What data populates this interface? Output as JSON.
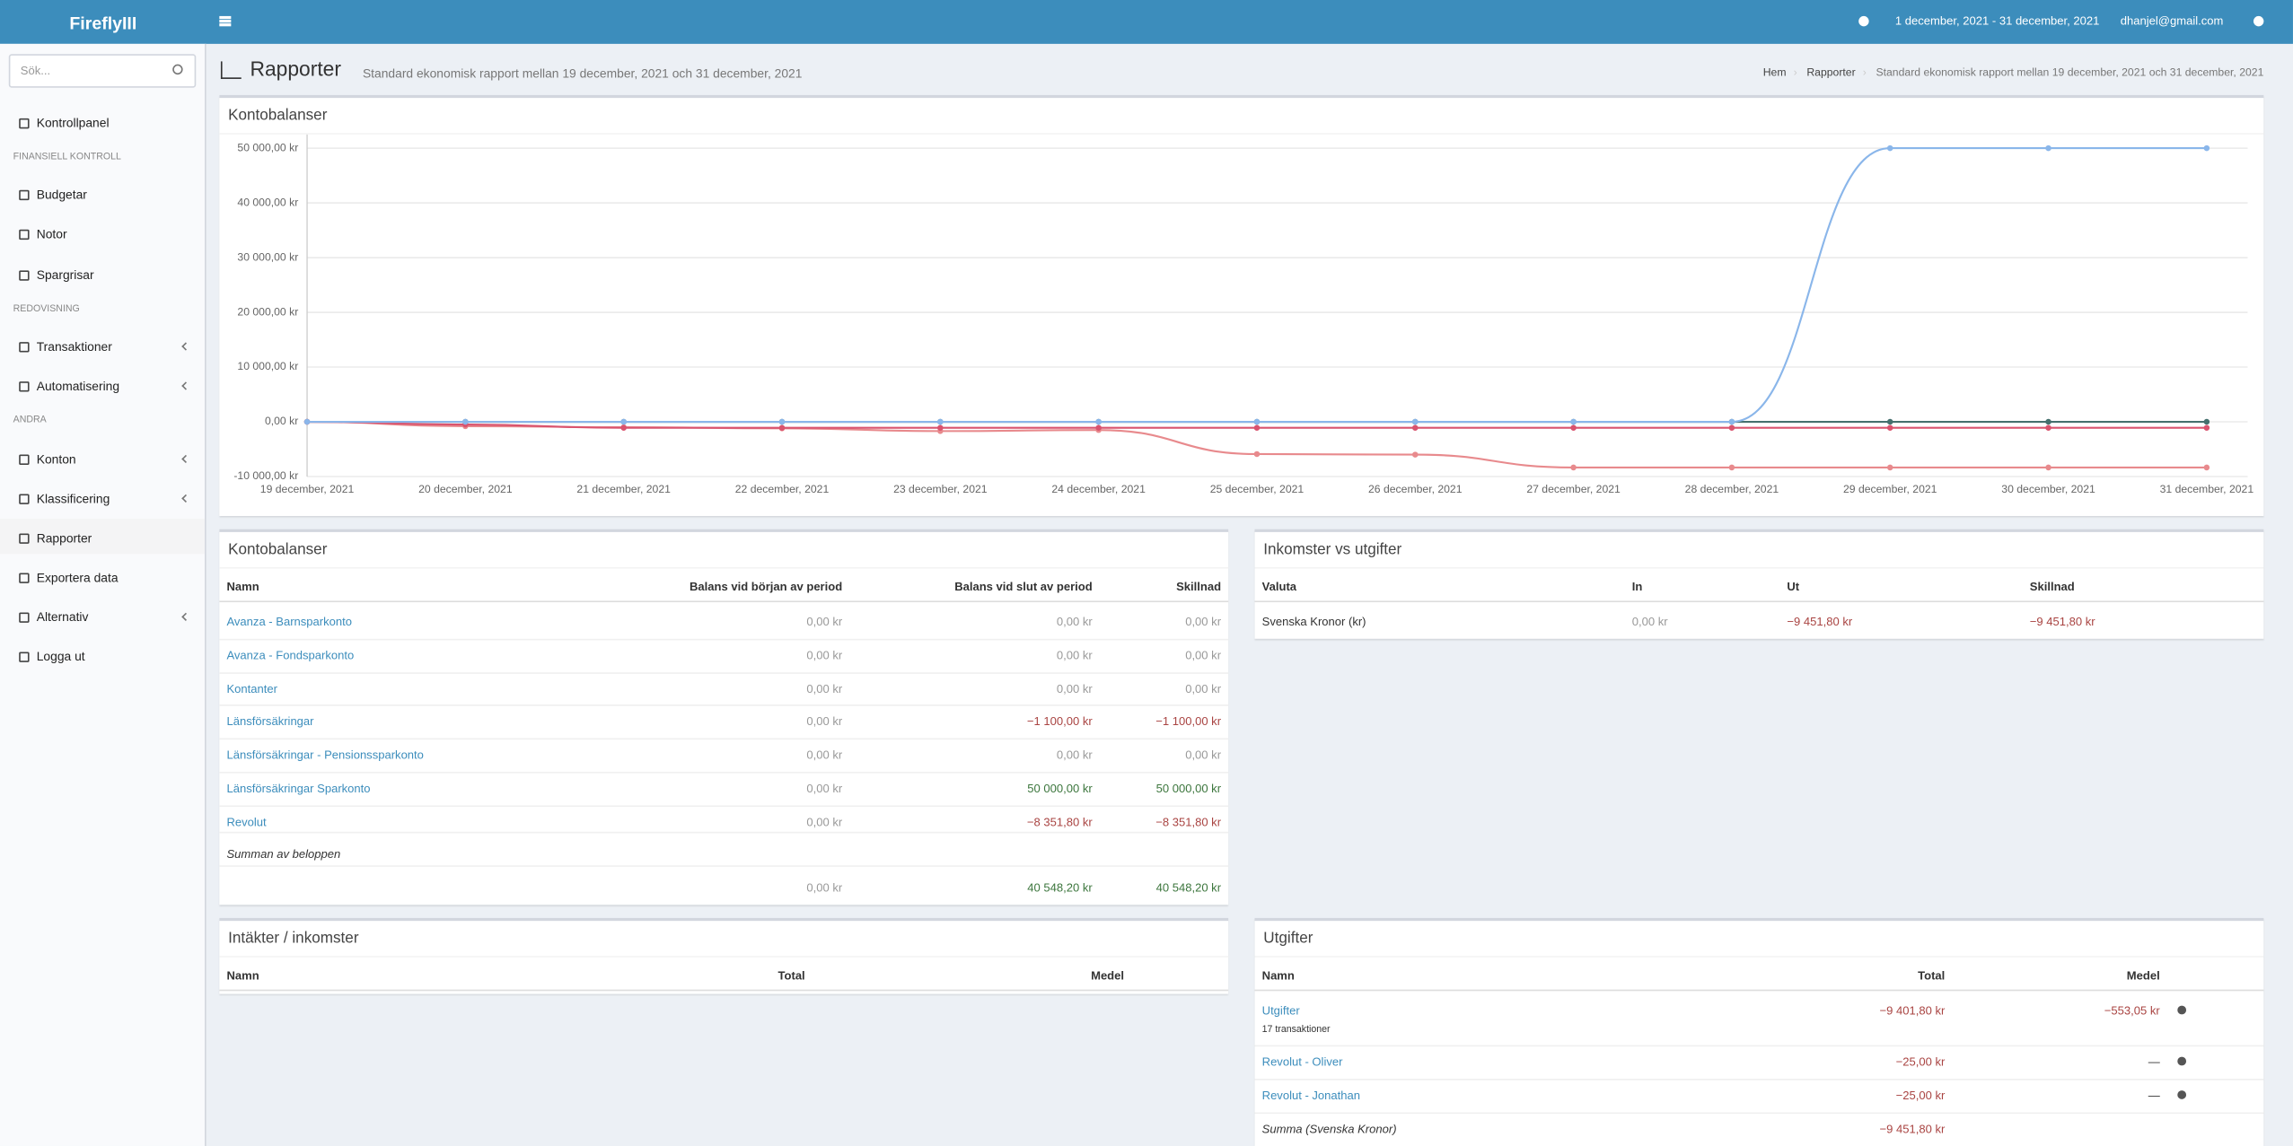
{
  "header": {
    "brand": "FireflyIII",
    "date_range": "1 december, 2021 - 31 december, 2021",
    "user": "dhanjel@gmail.com"
  },
  "sidebar": {
    "search": "Sök...",
    "menu": [
      {
        "label": "Kontrollpanel"
      },
      {
        "heading": "FINANSIELL KONTROLL"
      },
      {
        "label": "Budgetar"
      },
      {
        "label": "Notor"
      },
      {
        "label": "Spargrisar"
      },
      {
        "heading": "REDOVISNING"
      },
      {
        "label": "Transaktioner",
        "sub": true
      },
      {
        "label": "Automatisering",
        "sub": true
      },
      {
        "heading": "ANDRA"
      },
      {
        "label": "Konton",
        "sub": true
      },
      {
        "label": "Klassificering",
        "sub": true
      },
      {
        "label": "Rapporter",
        "active": true
      },
      {
        "label": "Exportera data"
      },
      {
        "label": "Alternativ",
        "sub": true
      },
      {
        "label": "Logga ut"
      }
    ]
  },
  "page": {
    "title": "Rapporter",
    "subtitle": "Standard ekonomisk rapport mellan 19 december, 2021 och 31 december, 2021",
    "breadcrumbs": [
      "Hem",
      "Rapporter",
      "Standard ekonomisk rapport mellan 19 december, 2021 och 31 december, 2021"
    ]
  },
  "chart_box": {
    "title": "Kontobalanser"
  },
  "chart_data": {
    "type": "line",
    "categories": [
      "19 december, 2021",
      "20 december, 2021",
      "21 december, 2021",
      "22 december, 2021",
      "23 december, 2021",
      "24 december, 2021",
      "25 december, 2021",
      "26 december, 2021",
      "27 december, 2021",
      "28 december, 2021",
      "29 december, 2021",
      "30 december, 2021",
      "31 december, 2021"
    ],
    "ylim": [
      -10000,
      52500
    ],
    "yticks": [
      {
        "value": -10000,
        "label": "-10 000,00 kr"
      },
      {
        "value": 0,
        "label": "0,00 kr"
      },
      {
        "value": 10000,
        "label": "10 000,00 kr"
      },
      {
        "value": 20000,
        "label": "20 000,00 kr"
      },
      {
        "value": 30000,
        "label": "30 000,00 kr"
      },
      {
        "value": 40000,
        "label": "40 000,00 kr"
      },
      {
        "value": 50000,
        "label": "50 000,00 kr"
      }
    ],
    "grid": true,
    "series": [
      {
        "color": "#45706e",
        "values": [
          0,
          0,
          0,
          0,
          0,
          0,
          0,
          0,
          0,
          0,
          0,
          0,
          0
        ]
      },
      {
        "color": "#e88a8d",
        "values": [
          0,
          -800,
          -1000,
          -1200,
          -1700,
          -1500,
          -5900,
          -6000,
          -8351.8,
          -8351.8,
          -8351.8,
          -8351.8,
          -8351.8
        ]
      },
      {
        "color": "#d9536e",
        "values": [
          0,
          -500,
          -1100,
          -1100,
          -1100,
          -1100,
          -1100,
          -1100,
          -1100,
          -1100,
          -1100,
          -1100,
          -1100
        ]
      },
      {
        "color": "#8ab6ea",
        "values": [
          0,
          0,
          0,
          0,
          0,
          0,
          0,
          0,
          0,
          0,
          50000,
          50000,
          50000
        ]
      }
    ]
  },
  "accounts": {
    "title": "Kontobalanser",
    "columns": [
      "Namn",
      "Balans vid början av period",
      "Balans vid slut av period",
      "Skillnad"
    ],
    "rows": [
      [
        "Avanza - Barnsparkonto",
        "0,00 kr",
        "0,00 kr",
        "0,00 kr"
      ],
      [
        "Avanza - Fondsparkonto",
        "0,00 kr",
        "0,00 kr",
        "0,00 kr"
      ],
      [
        "Kontanter",
        "0,00 kr",
        "0,00 kr",
        "0,00 kr"
      ],
      [
        "Länsförsäkringar",
        "0,00 kr",
        "−1 100,00 kr",
        "−1 100,00 kr"
      ],
      [
        "Länsförsäkringar - Pensionssparkonto",
        "0,00 kr",
        "0,00 kr",
        "0,00 kr"
      ],
      [
        "Länsförsäkringar Sparkonto",
        "0,00 kr",
        "50 000,00 kr",
        "50 000,00 kr"
      ],
      [
        "Revolut",
        "0,00 kr",
        "−8 351,80 kr",
        "−8 351,80 kr"
      ]
    ],
    "sum_label": "Summan av beloppen",
    "totals": [
      "0,00 kr",
      "40 548,20 kr",
      "40 548,20 kr"
    ]
  },
  "income_vs_expenses": {
    "title": "Inkomster vs utgifter",
    "columns": [
      "Valuta",
      "In",
      "Ut",
      "Skillnad"
    ],
    "rows": [
      [
        "Svenska Kronor (kr)",
        "0,00 kr",
        "−9 451,80 kr",
        "−9 451,80 kr"
      ]
    ]
  },
  "income": {
    "title": "Intäkter / inkomster",
    "columns": [
      "Namn",
      "Total",
      "Medel"
    ]
  },
  "expenses": {
    "title": "Utgifter",
    "columns": [
      "Namn",
      "Total",
      "Medel"
    ],
    "rows": [
      [
        "Utgifter",
        "−9 401,80 kr",
        "−553,05 kr",
        "17 transaktioner"
      ],
      [
        "Revolut - Oliver",
        "−25,00 kr",
        "—"
      ],
      [
        "Revolut - Jonathan",
        "−25,00 kr",
        "—"
      ]
    ],
    "sum": [
      "Summa (Svenska Kronor)",
      "−9 451,80 kr"
    ]
  }
}
